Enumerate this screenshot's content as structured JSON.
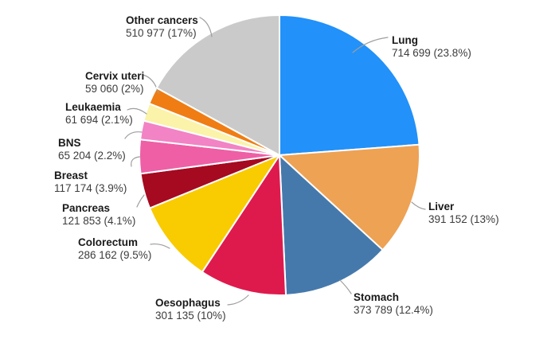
{
  "chart_data": {
    "type": "pie",
    "title": "",
    "direction": "clockwise",
    "start_angle_deg": 0,
    "legend_position": "labels-around-pie",
    "background_color": "#ffffff",
    "divider_color": "#ffffff",
    "leader_line_color": "#9e9e9e",
    "slices": [
      {
        "label": "Lung",
        "value": 714699,
        "value_text": "714 699",
        "pct": 23.8,
        "pct_text": "23.8%",
        "color": "#2291F9"
      },
      {
        "label": "Liver",
        "value": 391152,
        "value_text": "391 152",
        "pct": 13.0,
        "pct_text": "13%",
        "color": "#EDA254"
      },
      {
        "label": "Stomach",
        "value": 373789,
        "value_text": "373 789",
        "pct": 12.4,
        "pct_text": "12.4%",
        "color": "#4579AC"
      },
      {
        "label": "Oesophagus",
        "value": 301135,
        "value_text": "301 135",
        "pct": 10.0,
        "pct_text": "10%",
        "color": "#DE1A4D"
      },
      {
        "label": "Colorectum",
        "value": 286162,
        "value_text": "286 162",
        "pct": 9.5,
        "pct_text": "9.5%",
        "color": "#F9CB01"
      },
      {
        "label": "Pancreas",
        "value": 121853,
        "value_text": "121 853",
        "pct": 4.1,
        "pct_text": "4.1%",
        "color": "#A50A20"
      },
      {
        "label": "Breast",
        "value": 117174,
        "value_text": "117 174",
        "pct": 3.9,
        "pct_text": "3.9%",
        "color": "#EE5FA6"
      },
      {
        "label": "BNS",
        "value": 65204,
        "value_text": "65 204",
        "pct": 2.2,
        "pct_text": "2.2%",
        "color": "#F283C4"
      },
      {
        "label": "Leukaemia",
        "value": 61694,
        "value_text": "61 694",
        "pct": 2.1,
        "pct_text": "2.1%",
        "color": "#FAF3A9"
      },
      {
        "label": "Cervix uteri",
        "value": 59060,
        "value_text": "59 060",
        "pct": 2.0,
        "pct_text": "2%",
        "color": "#EF7D13"
      },
      {
        "label": "Other cancers",
        "value": 510977,
        "value_text": "510 977",
        "pct": 17.0,
        "pct_text": "17%",
        "color": "#CACACA"
      }
    ]
  }
}
